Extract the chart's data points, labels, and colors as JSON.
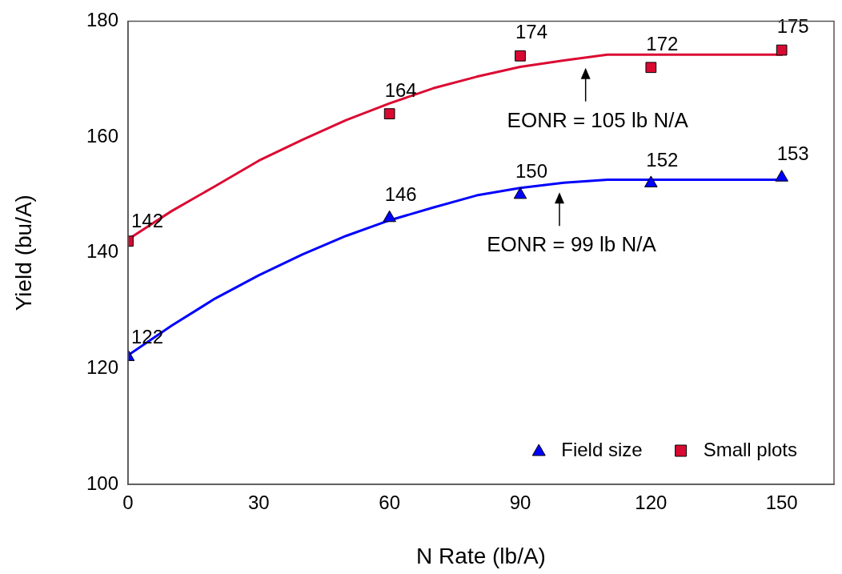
{
  "chart_data": {
    "type": "scatter",
    "xlabel": "N Rate (lb/A)",
    "ylabel": "Yield (bu/A)",
    "xlim": [
      0,
      162
    ],
    "xticks": [
      0,
      30,
      60,
      90,
      120,
      150
    ],
    "ylim": [
      100,
      180
    ],
    "yticks": [
      100,
      120,
      140,
      160,
      180
    ],
    "grid": false,
    "legend": "bottom right",
    "series": [
      {
        "name": "Field size",
        "marker": "triangle",
        "color": "#0000ff",
        "x": [
          0,
          60,
          90,
          120,
          150
        ],
        "values": [
          122,
          146,
          150,
          152,
          153
        ],
        "value_labels": [
          "122",
          "146",
          "150",
          "152",
          "153"
        ]
      },
      {
        "name": "Small plots",
        "marker": "square",
        "color": "#d80a32",
        "x": [
          0,
          60,
          90,
          120,
          150
        ],
        "values": [
          142,
          164,
          174,
          172,
          175
        ],
        "value_labels": [
          "142",
          "164",
          "174",
          "172",
          "175"
        ]
      },
      {
        "type": "line",
        "marker": "none",
        "line_style": "solid",
        "color": "#0000ff",
        "x": [
          0,
          10,
          20,
          30,
          40,
          50,
          60,
          70,
          80,
          90,
          100,
          110,
          150
        ],
        "values": [
          122.3,
          127.4,
          132.1,
          136.1,
          139.7,
          142.9,
          145.6,
          147.8,
          149.9,
          151.2,
          152.1,
          152.6,
          152.6
        ]
      },
      {
        "type": "line",
        "marker": "none",
        "line_style": "solid",
        "color": "#dc0a32",
        "x": [
          0,
          10,
          20,
          30,
          40,
          50,
          60,
          70,
          80,
          90,
          100,
          110,
          150
        ],
        "values": [
          142.3,
          147.2,
          151.5,
          155.9,
          159.5,
          162.9,
          165.8,
          168.4,
          170.4,
          172.1,
          173.2,
          174.2,
          174.2
        ]
      }
    ],
    "annotations": [
      {
        "text": "EONR = 105 lb N/A",
        "x": 105,
        "y": 173.6
      },
      {
        "text": "EONR = 99 lb N/A",
        "x": 99,
        "y": 152.1
      }
    ]
  }
}
